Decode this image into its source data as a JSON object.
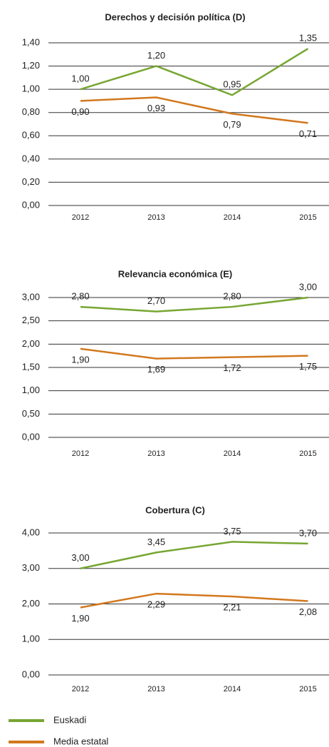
{
  "chart_data": [
    {
      "type": "line",
      "title": "Derechos y decisión política (D)",
      "categories": [
        "2012",
        "2013",
        "2014",
        "2015"
      ],
      "series": [
        {
          "name": "Euskadi",
          "color": "#77a632",
          "values": [
            1.0,
            1.2,
            0.95,
            1.35
          ],
          "value_labels": [
            "1,00",
            "1,20",
            "0,95",
            "1,35"
          ]
        },
        {
          "name": "Media estatal",
          "color": "#d2781e",
          "values": [
            0.9,
            0.93,
            0.79,
            0.71
          ],
          "value_labels": [
            "0,90",
            "0,93",
            "0,79",
            "0,71"
          ]
        }
      ],
      "ylim": [
        0,
        1.4
      ],
      "yticks": [
        {
          "value": 0,
          "label": "0,00"
        },
        {
          "value": 0.2,
          "label": "0,20"
        },
        {
          "value": 0.4,
          "label": "0,40"
        },
        {
          "value": 0.6,
          "label": "0,60"
        },
        {
          "value": 0.8,
          "label": "0,80"
        },
        {
          "value": 1.0,
          "label": "1,00"
        },
        {
          "value": 1.2,
          "label": "1,20"
        },
        {
          "value": 1.4,
          "label": "1,40"
        }
      ],
      "grid": true
    },
    {
      "type": "line",
      "title": "Relevancia económica (E)",
      "categories": [
        "2012",
        "2013",
        "2014",
        "2015"
      ],
      "series": [
        {
          "name": "Euskadi",
          "color": "#77a632",
          "values": [
            2.8,
            2.7,
            2.8,
            3.0
          ],
          "value_labels": [
            "2,80",
            "2,70",
            "2,80",
            "3,00"
          ]
        },
        {
          "name": "Media estatal",
          "color": "#d2781e",
          "values": [
            1.9,
            1.69,
            1.72,
            1.75
          ],
          "value_labels": [
            "1,90",
            "1,69",
            "1,72",
            "1,75"
          ]
        }
      ],
      "ylim": [
        0,
        3
      ],
      "yticks": [
        {
          "value": 0,
          "label": "0,00"
        },
        {
          "value": 0.5,
          "label": "0,50"
        },
        {
          "value": 1.0,
          "label": "1,00"
        },
        {
          "value": 1.5,
          "label": "1,50"
        },
        {
          "value": 2.0,
          "label": "2,00"
        },
        {
          "value": 2.5,
          "label": "2,50"
        },
        {
          "value": 3.0,
          "label": "3,00"
        }
      ],
      "grid": true
    },
    {
      "type": "line",
      "title": "Cobertura (C)",
      "categories": [
        "2012",
        "2013",
        "2014",
        "2015"
      ],
      "series": [
        {
          "name": "Euskadi",
          "color": "#77a632",
          "values": [
            3.0,
            3.45,
            3.75,
            3.7
          ],
          "value_labels": [
            "3,00",
            "3,45",
            "3,75",
            "3,70"
          ]
        },
        {
          "name": "Media estatal",
          "color": "#d2781e",
          "values": [
            1.9,
            2.29,
            2.21,
            2.08
          ],
          "value_labels": [
            "1,90",
            "2,29",
            "2,21",
            "2,08"
          ]
        }
      ],
      "ylim": [
        0,
        4
      ],
      "yticks": [
        {
          "value": 0,
          "label": "0,00"
        },
        {
          "value": 1,
          "label": "1,00"
        },
        {
          "value": 2,
          "label": "2,00"
        },
        {
          "value": 3,
          "label": "3,00"
        },
        {
          "value": 4,
          "label": "4,00"
        }
      ],
      "grid": true
    }
  ]
}
